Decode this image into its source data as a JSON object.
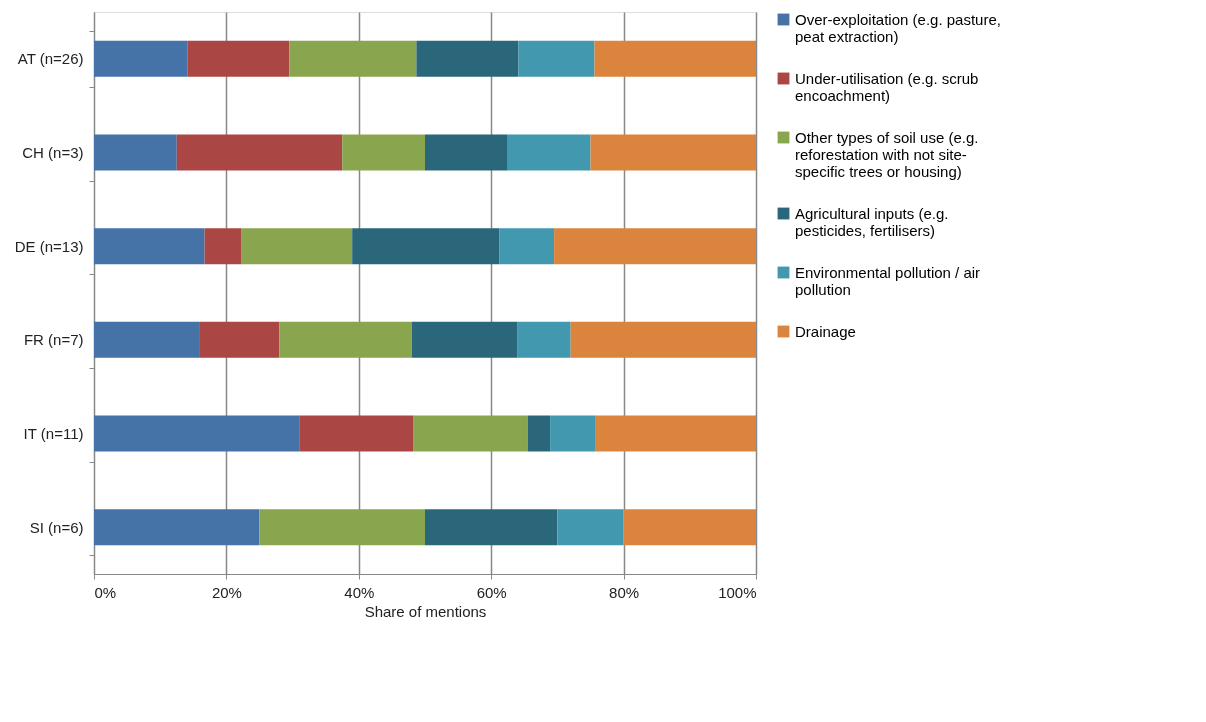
{
  "chart_data": {
    "type": "bar",
    "orientation": "horizontal",
    "stacked": true,
    "categories": [
      "AT   (n=26)",
      "CH   (n=3)",
      "DE   (n=13)",
      "FR   (n=7)",
      "IT   (n=11)",
      "SI   (n=6)"
    ],
    "series": [
      {
        "name": "Over-exploitation (e.g. pasture, peat extraction)",
        "color": "#4572a7",
        "values": [
          14.1,
          12.5,
          16.7,
          16,
          31.0,
          25
        ]
      },
      {
        "name": "Under-utilisation (e.g. scrub encoachment)",
        "color": "#aa4643",
        "values": [
          15.4,
          25,
          5.6,
          12,
          17.2,
          0
        ]
      },
      {
        "name": "Other types of soil use (e.g. reforestation with not site-specific trees or housing)",
        "color": "#89a54e",
        "values": [
          19.2,
          12.5,
          16.7,
          20,
          17.3,
          25
        ]
      },
      {
        "name": "Agricultural inputs (e.g. pesticides, fertilisers)",
        "color": "#2b677a",
        "values": [
          15.4,
          12.5,
          22.2,
          16,
          3.4,
          20
        ]
      },
      {
        "name": "Environmental pollution / air pollution",
        "color": "#4198af",
        "values": [
          11.5,
          12.5,
          8.3,
          8,
          6.9,
          10
        ]
      },
      {
        "name": "Drainage",
        "color": "#db843d",
        "values": [
          24.4,
          25,
          30.5,
          28,
          24.2,
          20
        ]
      }
    ],
    "xlabel": "Share of mentions",
    "xlim": [
      0,
      100
    ],
    "xticks": [
      {
        "value": 0,
        "label": "0%"
      },
      {
        "value": 20,
        "label": "20%"
      },
      {
        "value": 40,
        "label": "40%"
      },
      {
        "value": 60,
        "label": "60%"
      },
      {
        "value": 80,
        "label": "80%"
      },
      {
        "value": 100,
        "label": "100%"
      }
    ],
    "grid": "x",
    "legend": "right"
  }
}
